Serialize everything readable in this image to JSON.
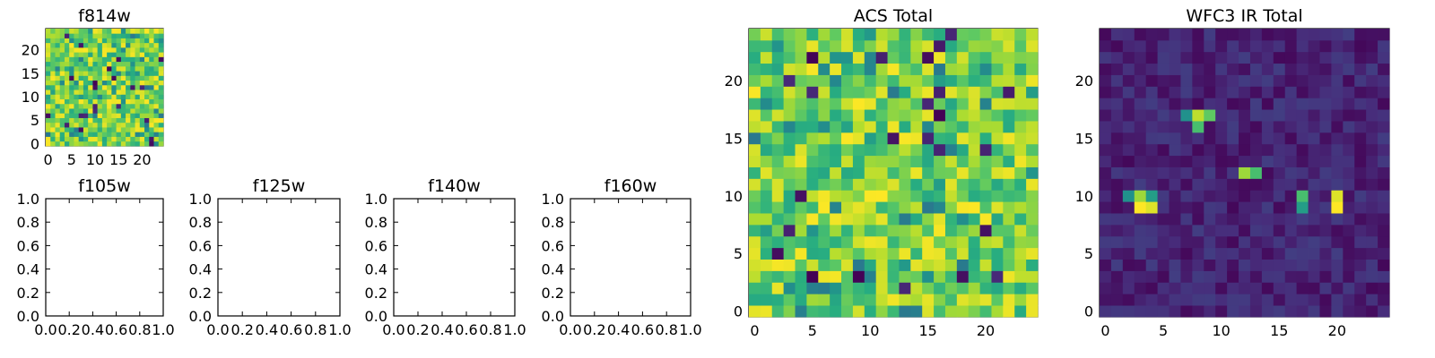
{
  "chart_data": [
    {
      "type": "heatmap",
      "title": "f814w",
      "rows": 25,
      "cols": 25,
      "colormap": "viridis",
      "xticks": [
        "0",
        "5",
        "10",
        "15",
        "20"
      ],
      "yticks": [
        "0",
        "5",
        "10",
        "15",
        "20"
      ],
      "xlim": [
        -0.5,
        24.5
      ],
      "ylim": [
        -0.5,
        24.5
      ]
    },
    {
      "type": "empty",
      "title": "f105w",
      "xticks": [
        "0.0",
        "0.2",
        "0.4",
        "0.6",
        "0.8",
        "1.0"
      ],
      "yticks": [
        "0.0",
        "0.2",
        "0.4",
        "0.6",
        "0.8",
        "1.0"
      ],
      "xlim": [
        0,
        1
      ],
      "ylim": [
        0,
        1
      ]
    },
    {
      "type": "empty",
      "title": "f125w",
      "xticks": [
        "0.0",
        "0.2",
        "0.4",
        "0.6",
        "0.8",
        "1.0"
      ],
      "yticks": [
        "0.0",
        "0.2",
        "0.4",
        "0.6",
        "0.8",
        "1.0"
      ],
      "xlim": [
        0,
        1
      ],
      "ylim": [
        0,
        1
      ]
    },
    {
      "type": "empty",
      "title": "f140w",
      "xticks": [
        "0.0",
        "0.2",
        "0.4",
        "0.6",
        "0.8",
        "1.0"
      ],
      "yticks": [
        "0.0",
        "0.2",
        "0.4",
        "0.6",
        "0.8",
        "1.0"
      ],
      "xlim": [
        0,
        1
      ],
      "ylim": [
        0,
        1
      ]
    },
    {
      "type": "empty",
      "title": "f160w",
      "xticks": [
        "0.0",
        "0.2",
        "0.4",
        "0.6",
        "0.8",
        "1.0"
      ],
      "yticks": [
        "0.0",
        "0.2",
        "0.4",
        "0.6",
        "0.8",
        "1.0"
      ],
      "xlim": [
        0,
        1
      ],
      "ylim": [
        0,
        1
      ]
    },
    {
      "type": "heatmap",
      "title": "ACS Total",
      "rows": 25,
      "cols": 25,
      "colormap": "viridis",
      "xticks": [
        "0",
        "5",
        "10",
        "15",
        "20"
      ],
      "yticks": [
        "0",
        "5",
        "10",
        "15",
        "20"
      ],
      "xlim": [
        -0.5,
        24.5
      ],
      "ylim": [
        -0.5,
        24.5
      ]
    },
    {
      "type": "heatmap",
      "title": "WFC3 IR Total",
      "rows": 25,
      "cols": 25,
      "colormap": "viridis",
      "xticks": [
        "0",
        "5",
        "10",
        "15",
        "20"
      ],
      "yticks": [
        "0",
        "5",
        "10",
        "15",
        "20"
      ],
      "xlim": [
        -0.5,
        24.5
      ],
      "ylim": [
        -0.5,
        24.5
      ],
      "bright_spots": [
        {
          "x": 8,
          "y": 17,
          "value": 0.9
        },
        {
          "x": 9,
          "y": 17,
          "value": 0.75
        },
        {
          "x": 8,
          "y": 16,
          "value": 0.7
        },
        {
          "x": 7,
          "y": 17,
          "value": 0.5
        },
        {
          "x": 12,
          "y": 12,
          "value": 0.85
        },
        {
          "x": 13,
          "y": 12,
          "value": 0.7
        },
        {
          "x": 3,
          "y": 9,
          "value": 1.0
        },
        {
          "x": 4,
          "y": 9,
          "value": 0.95
        },
        {
          "x": 3,
          "y": 10,
          "value": 0.85
        },
        {
          "x": 4,
          "y": 10,
          "value": 0.55
        },
        {
          "x": 2,
          "y": 10,
          "value": 0.5
        },
        {
          "x": 20,
          "y": 9,
          "value": 1.0
        },
        {
          "x": 20,
          "y": 10,
          "value": 0.95
        },
        {
          "x": 17,
          "y": 10,
          "value": 0.7
        },
        {
          "x": 17,
          "y": 9,
          "value": 0.55
        }
      ]
    }
  ]
}
